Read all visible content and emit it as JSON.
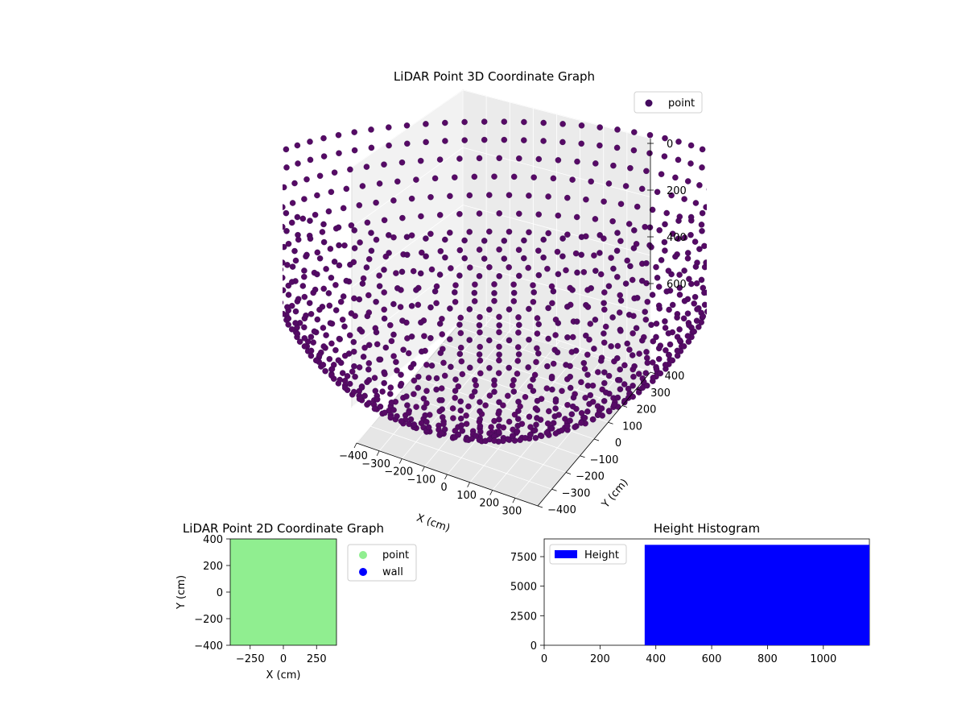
{
  "chart_data": [
    {
      "type": "scatter",
      "projection": "3d",
      "title": "LiDAR Point 3D Coordinate Graph",
      "xlabel": "X (cm)",
      "ylabel": "Y (cm)",
      "zlabel": "",
      "xticks": [
        "−400",
        "−300",
        "−200",
        "−100",
        "0",
        "100",
        "200",
        "300"
      ],
      "yticks": [
        "−400",
        "−300",
        "−200",
        "−100",
        "0",
        "100",
        "200",
        "300",
        "400"
      ],
      "zticks": [
        "0",
        "200",
        "400",
        "600"
      ],
      "xlim": [
        -400,
        400
      ],
      "ylim": [
        -400,
        400
      ],
      "zlim": [
        -800,
        0
      ],
      "series": [
        {
          "name": "point",
          "color": "#440a5e"
        }
      ],
      "legend": {
        "position": "top-right",
        "entries": [
          "point"
        ]
      },
      "grid": true
    },
    {
      "type": "scatter",
      "title": "LiDAR Point 2D Coordinate Graph",
      "xlabel": "X (cm)",
      "ylabel": "Y (cm)",
      "xticks": [
        "−250",
        "0",
        "250"
      ],
      "yticks": [
        "−400",
        "−200",
        "0",
        "200",
        "400"
      ],
      "xlim": [
        -400,
        400
      ],
      "ylim": [
        -400,
        400
      ],
      "series": [
        {
          "name": "point",
          "color": "#90ee90"
        },
        {
          "name": "wall",
          "color": "#0000ff"
        }
      ],
      "legend": {
        "position": "outside-right",
        "entries": [
          "point",
          "wall"
        ]
      },
      "grid": false
    },
    {
      "type": "bar",
      "title": "Height Histogram",
      "xticks": [
        "0",
        "200",
        "400",
        "600",
        "800",
        "1000"
      ],
      "yticks": [
        "0",
        "2500",
        "5000",
        "7500"
      ],
      "xlim": [
        0,
        1165
      ],
      "ylim": [
        0,
        9000
      ],
      "series": [
        {
          "name": "Height",
          "color": "#0000ff",
          "bins": [
            {
              "x0": 360,
              "x1": 1165,
              "count": 8500
            }
          ]
        }
      ],
      "legend": {
        "position": "upper-left",
        "entries": [
          "Height"
        ]
      },
      "grid": false
    }
  ]
}
